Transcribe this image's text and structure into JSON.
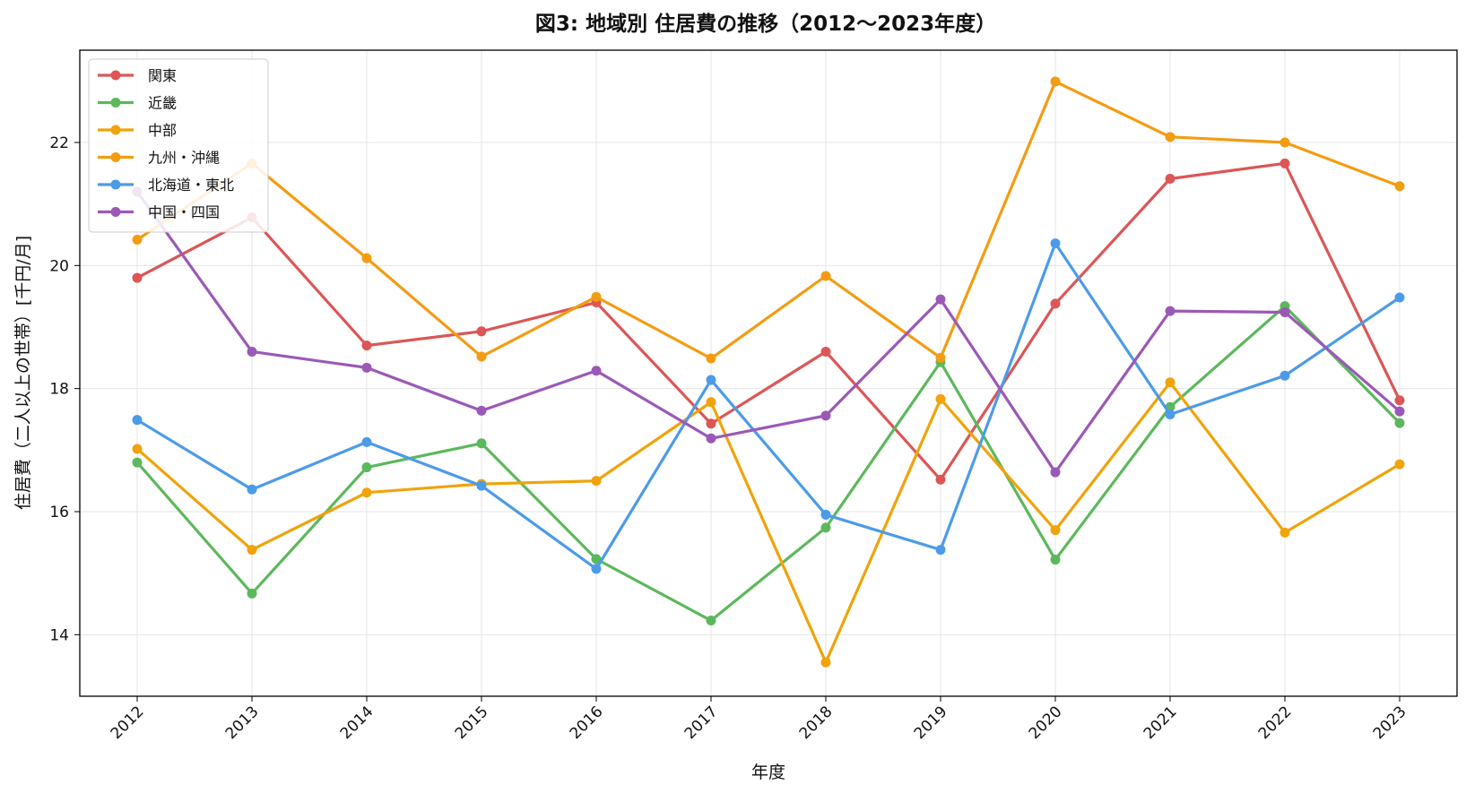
{
  "chart_data": {
    "type": "line",
    "title": "図3: 地域別 住居費の推移（2012〜2023年度）",
    "xlabel": "年度",
    "ylabel": "住居費（二人以上の世帯）[千円/月]",
    "x": [
      2012,
      2013,
      2014,
      2015,
      2016,
      2017,
      2018,
      2019,
      2020,
      2021,
      2022,
      2023
    ],
    "ylim": [
      13.0,
      23.5
    ],
    "yticks": [
      14,
      16,
      18,
      20,
      22
    ],
    "grid": true,
    "legend_position": "top-left",
    "series": [
      {
        "name": "関東",
        "color": "#dc5656",
        "values": [
          19.8,
          20.78,
          18.7,
          18.93,
          19.4,
          17.43,
          18.6,
          16.52,
          19.38,
          21.41,
          21.66,
          17.81
        ]
      },
      {
        "name": "近畿",
        "color": "#5cb85c",
        "values": [
          16.8,
          14.67,
          16.72,
          17.11,
          15.23,
          14.23,
          15.74,
          18.43,
          15.22,
          17.7,
          19.34,
          17.44
        ]
      },
      {
        "name": "中部",
        "color": "#f0a30a",
        "values": [
          17.02,
          15.38,
          16.31,
          16.45,
          16.5,
          17.78,
          13.55,
          17.83,
          15.7,
          18.1,
          15.66,
          16.77
        ]
      },
      {
        "name": "九州・沖縄",
        "color": "#f39c12",
        "values": [
          20.42,
          21.66,
          20.12,
          18.52,
          19.49,
          18.49,
          19.83,
          18.5,
          22.99,
          22.09,
          22.0,
          21.29
        ]
      },
      {
        "name": "北海道・東北",
        "color": "#4c9be8",
        "values": [
          17.49,
          16.36,
          17.13,
          16.42,
          15.07,
          18.14,
          15.95,
          15.38,
          20.36,
          17.58,
          18.21,
          19.48
        ]
      },
      {
        "name": "中国・四国",
        "color": "#9b59b6",
        "values": [
          21.2,
          18.6,
          18.34,
          17.64,
          18.29,
          17.19,
          17.56,
          19.45,
          16.64,
          19.26,
          19.24,
          17.63
        ]
      }
    ]
  }
}
